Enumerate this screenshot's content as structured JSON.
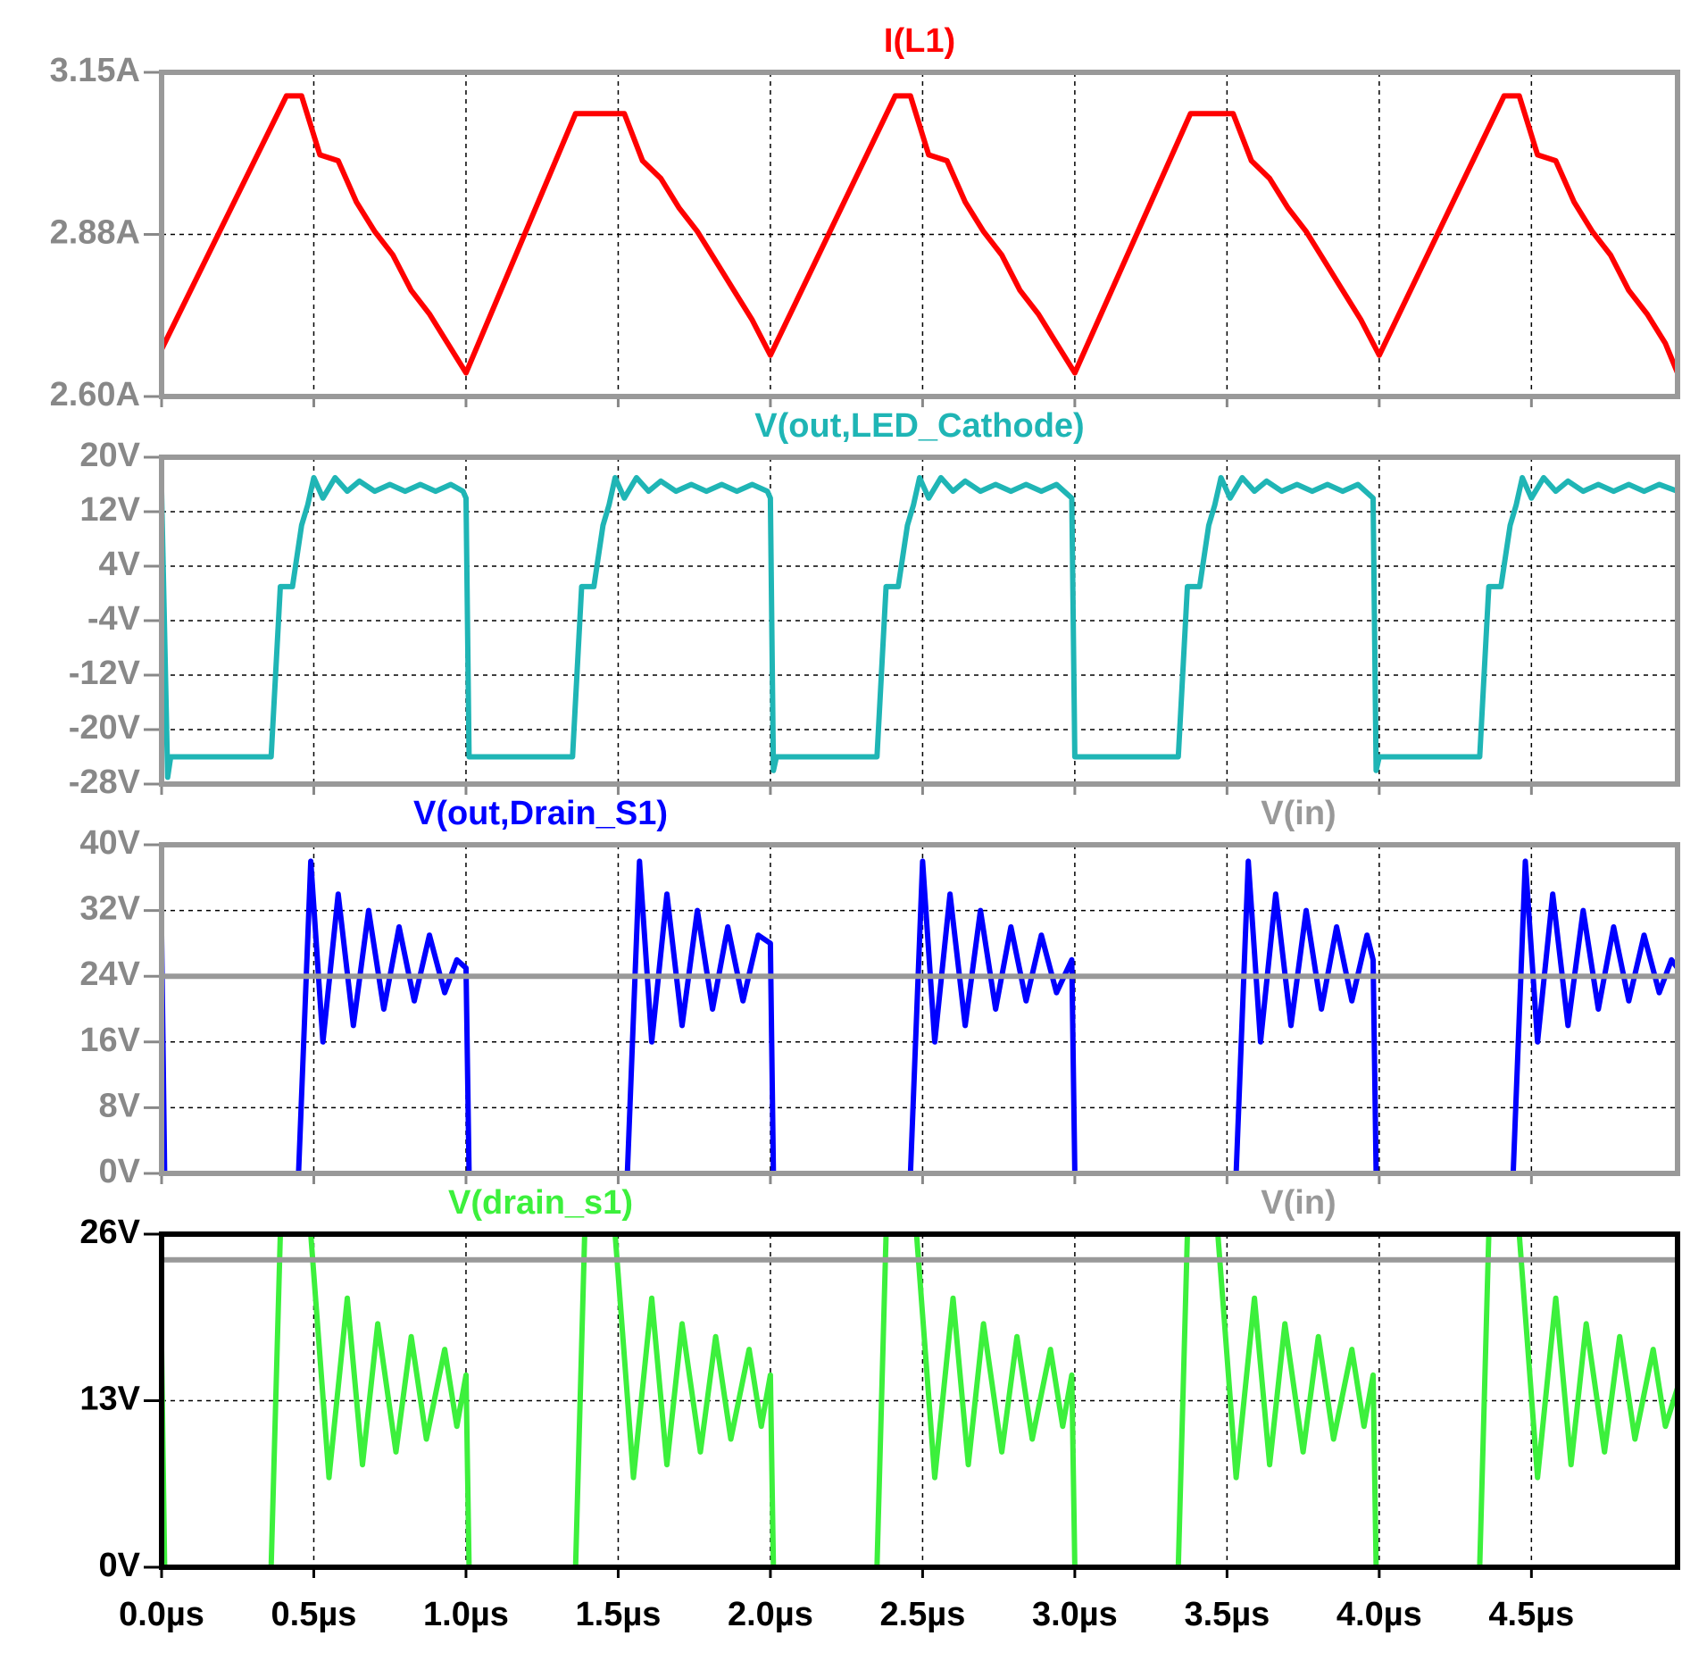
{
  "chart_data": [
    {
      "type": "line",
      "xlim": [
        0,
        4.98
      ],
      "xticks": [
        0,
        0.5,
        1,
        1.5,
        2,
        2.5,
        3,
        3.5,
        4,
        4.5
      ],
      "ylim": [
        2.6,
        3.15
      ],
      "yticks": [
        {
          "value": 2.6,
          "label": "2.60A"
        },
        {
          "value": 2.875,
          "label": "2.88A"
        },
        {
          "value": 3.15,
          "label": "3.15A"
        }
      ],
      "grid": true,
      "frame_color": "#999999",
      "tick_color": "#888888",
      "series": [
        {
          "name": "I(L1)",
          "color": "#ff0000",
          "x": [
            0,
            0.41,
            0.46,
            0.52,
            0.58,
            0.64,
            0.7,
            0.76,
            0.82,
            0.88,
            0.94,
            1.0,
            1.36,
            1.52,
            1.58,
            1.64,
            1.7,
            1.76,
            1.82,
            1.88,
            1.94,
            2.0,
            2.41,
            2.46,
            2.52,
            2.58,
            2.64,
            2.7,
            2.76,
            2.82,
            2.88,
            2.94,
            3.0,
            3.38,
            3.52,
            3.58,
            3.64,
            3.7,
            3.76,
            3.82,
            3.88,
            3.94,
            4.0,
            4.41,
            4.46,
            4.52,
            4.58,
            4.64,
            4.7,
            4.76,
            4.82,
            4.88,
            4.94,
            4.98
          ],
          "values": [
            2.68,
            3.11,
            3.11,
            3.01,
            3.0,
            2.93,
            2.88,
            2.84,
            2.78,
            2.74,
            2.69,
            2.64,
            3.08,
            3.08,
            3.0,
            2.97,
            2.92,
            2.88,
            2.83,
            2.78,
            2.73,
            2.67,
            3.11,
            3.11,
            3.01,
            3.0,
            2.93,
            2.88,
            2.84,
            2.78,
            2.74,
            2.69,
            2.64,
            3.08,
            3.08,
            3.0,
            2.97,
            2.92,
            2.88,
            2.83,
            2.78,
            2.73,
            2.67,
            3.11,
            3.11,
            3.01,
            3.0,
            2.93,
            2.88,
            2.84,
            2.78,
            2.74,
            2.69,
            2.64
          ]
        }
      ]
    },
    {
      "type": "line",
      "xlim": [
        0,
        4.98
      ],
      "xticks": [
        0,
        0.5,
        1,
        1.5,
        2,
        2.5,
        3,
        3.5,
        4,
        4.5
      ],
      "ylim": [
        -28,
        20
      ],
      "yticks": [
        {
          "value": -28,
          "label": "-28V"
        },
        {
          "value": -20,
          "label": "-20V"
        },
        {
          "value": -12,
          "label": "-12V"
        },
        {
          "value": -4,
          "label": "-4V"
        },
        {
          "value": 4,
          "label": "4V"
        },
        {
          "value": 12,
          "label": "12V"
        },
        {
          "value": 20,
          "label": "20V"
        }
      ],
      "grid": true,
      "frame_color": "#999999",
      "tick_color": "#888888",
      "series": [
        {
          "name": "V(out,LED_Cathode)",
          "color": "#1fb5b5",
          "x": [
            0,
            0.02,
            0.03,
            0.36,
            0.39,
            0.43,
            0.46,
            0.48,
            0.5,
            0.53,
            0.57,
            0.61,
            0.65,
            0.7,
            0.75,
            0.8,
            0.85,
            0.9,
            0.95,
            0.99,
            1.0,
            1.01,
            1.35,
            1.38,
            1.42,
            1.45,
            1.47,
            1.49,
            1.52,
            1.56,
            1.6,
            1.64,
            1.69,
            1.74,
            1.79,
            1.84,
            1.89,
            1.94,
            1.99,
            2.0,
            2.01,
            2.02,
            2.35,
            2.38,
            2.42,
            2.45,
            2.47,
            2.49,
            2.52,
            2.56,
            2.6,
            2.64,
            2.69,
            2.74,
            2.79,
            2.84,
            2.89,
            2.94,
            2.99,
            3.0,
            3.34,
            3.37,
            3.41,
            3.44,
            3.46,
            3.48,
            3.51,
            3.55,
            3.59,
            3.63,
            3.68,
            3.73,
            3.78,
            3.83,
            3.88,
            3.93,
            3.98,
            3.99,
            4.0,
            4.33,
            4.36,
            4.4,
            4.43,
            4.45,
            4.47,
            4.5,
            4.54,
            4.58,
            4.62,
            4.67,
            4.72,
            4.77,
            4.82,
            4.87,
            4.92,
            4.98
          ],
          "values": [
            15,
            -27,
            -24,
            -24,
            1,
            1,
            10,
            13,
            17,
            14,
            17,
            15,
            16.5,
            15,
            16,
            15,
            16,
            15,
            16,
            15,
            14,
            -24,
            -24,
            1,
            1,
            10,
            13,
            17,
            14,
            17,
            15,
            16.5,
            15,
            16,
            15,
            16,
            15,
            16,
            15,
            14,
            -26,
            -24,
            -24,
            1,
            1,
            10,
            13,
            17,
            14,
            17,
            15,
            16.5,
            15,
            16,
            15,
            16,
            15,
            16,
            14,
            -24,
            -24,
            1,
            1,
            10,
            13,
            17,
            14,
            17,
            15,
            16.5,
            15,
            16,
            15,
            16,
            15,
            16,
            14,
            -26,
            -24,
            -24,
            1,
            1,
            10,
            13,
            17,
            14,
            17,
            15,
            16.5,
            15,
            16,
            15,
            16,
            15,
            16,
            15
          ]
        }
      ]
    },
    {
      "type": "line",
      "xlim": [
        0,
        4.98
      ],
      "xticks": [
        0,
        0.5,
        1,
        1.5,
        2,
        2.5,
        3,
        3.5,
        4,
        4.5
      ],
      "ylim": [
        0,
        40
      ],
      "yticks": [
        {
          "value": 0,
          "label": "0V"
        },
        {
          "value": 8,
          "label": "8V"
        },
        {
          "value": 16,
          "label": "16V"
        },
        {
          "value": 24,
          "label": "24V"
        },
        {
          "value": 32,
          "label": "32V"
        },
        {
          "value": 40,
          "label": "40V"
        }
      ],
      "grid": true,
      "frame_color": "#999999",
      "tick_color": "#888888",
      "series": [
        {
          "name": "V(out,Drain_S1)",
          "color": "#0000ff",
          "x": [
            0,
            0.01,
            0.45,
            0.49,
            0.53,
            0.58,
            0.63,
            0.68,
            0.73,
            0.78,
            0.83,
            0.88,
            0.93,
            0.97,
            1.0,
            1.01,
            1.53,
            1.57,
            1.61,
            1.66,
            1.71,
            1.76,
            1.81,
            1.86,
            1.91,
            1.96,
            2.0,
            2.01,
            2.46,
            2.5,
            2.54,
            2.59,
            2.64,
            2.69,
            2.74,
            2.79,
            2.84,
            2.89,
            2.94,
            2.99,
            3.0,
            3.53,
            3.57,
            3.61,
            3.66,
            3.71,
            3.76,
            3.81,
            3.86,
            3.91,
            3.96,
            3.98,
            3.99,
            4.44,
            4.48,
            4.52,
            4.57,
            4.62,
            4.67,
            4.72,
            4.77,
            4.82,
            4.87,
            4.92,
            4.96,
            4.98
          ],
          "values": [
            29,
            0,
            0,
            38,
            16,
            34,
            18,
            32,
            20,
            30,
            21,
            29,
            22,
            26,
            25,
            0,
            0,
            38,
            16,
            34,
            18,
            32,
            20,
            30,
            21,
            29,
            28,
            0,
            0,
            38,
            16,
            34,
            18,
            32,
            20,
            30,
            21,
            29,
            22,
            26,
            0,
            0,
            38,
            16,
            34,
            18,
            32,
            20,
            30,
            21,
            29,
            26,
            0,
            0,
            38,
            16,
            34,
            18,
            32,
            20,
            30,
            21,
            29,
            22,
            26,
            25
          ]
        },
        {
          "name": "V(in)",
          "color": "#999999",
          "x": [
            0,
            4.98
          ],
          "values": [
            24,
            24
          ]
        }
      ]
    },
    {
      "type": "line",
      "xlim": [
        0,
        4.98
      ],
      "xticks": [
        {
          "value": 0,
          "label": "0.0µs"
        },
        {
          "value": 0.5,
          "label": "0.5µs"
        },
        {
          "value": 1,
          "label": "1.0µs"
        },
        {
          "value": 1.5,
          "label": "1.5µs"
        },
        {
          "value": 2,
          "label": "2.0µs"
        },
        {
          "value": 2.5,
          "label": "2.5µs"
        },
        {
          "value": 3,
          "label": "3.0µs"
        },
        {
          "value": 3.5,
          "label": "3.5µs"
        },
        {
          "value": 4,
          "label": "4.0µs"
        },
        {
          "value": 4.5,
          "label": "4.5µs"
        }
      ],
      "ylim": [
        0,
        26
      ],
      "yticks": [
        {
          "value": 0,
          "label": "0V"
        },
        {
          "value": 13,
          "label": "13V"
        },
        {
          "value": 26,
          "label": "26V"
        }
      ],
      "grid": true,
      "frame_color": "#000000",
      "tick_color": "#000000",
      "series": [
        {
          "name": "V(drain_s1)",
          "color": "#3cf03c",
          "x": [
            0,
            0.01,
            0.36,
            0.39,
            0.49,
            0.55,
            0.61,
            0.66,
            0.71,
            0.77,
            0.82,
            0.87,
            0.93,
            0.97,
            1.0,
            1.01,
            1.36,
            1.39,
            1.49,
            1.55,
            1.61,
            1.66,
            1.71,
            1.77,
            1.82,
            1.87,
            1.93,
            1.97,
            2.0,
            2.01,
            2.35,
            2.38,
            2.48,
            2.54,
            2.6,
            2.65,
            2.7,
            2.76,
            2.81,
            2.86,
            2.92,
            2.96,
            2.99,
            3.0,
            3.34,
            3.37,
            3.47,
            3.53,
            3.59,
            3.64,
            3.69,
            3.75,
            3.8,
            3.85,
            3.91,
            3.95,
            3.98,
            3.99,
            4.33,
            4.36,
            4.46,
            4.52,
            4.58,
            4.63,
            4.68,
            4.74,
            4.79,
            4.84,
            4.9,
            4.94,
            4.98
          ],
          "values": [
            17,
            0,
            0,
            26,
            26,
            7,
            21,
            8,
            19,
            9,
            18,
            10,
            17,
            11,
            15,
            0,
            0,
            26,
            26,
            7,
            21,
            8,
            19,
            9,
            18,
            10,
            17,
            11,
            15,
            0,
            0,
            26,
            26,
            7,
            21,
            8,
            19,
            9,
            18,
            10,
            17,
            11,
            15,
            0,
            0,
            26,
            26,
            7,
            21,
            8,
            19,
            9,
            18,
            10,
            17,
            11,
            15,
            0,
            0,
            26,
            26,
            7,
            21,
            8,
            19,
            9,
            18,
            10,
            17,
            11,
            14
          ]
        },
        {
          "name": "V(in)",
          "color": "#999999",
          "x": [
            0,
            4.98
          ],
          "values": [
            24,
            24
          ]
        }
      ]
    }
  ]
}
